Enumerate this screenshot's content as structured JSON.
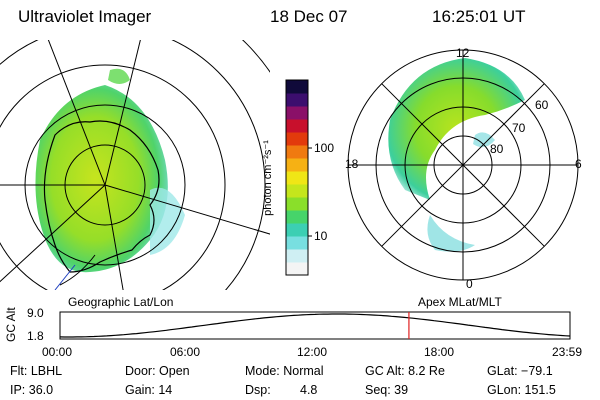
{
  "header": {
    "title": "Ultraviolet Imager",
    "date": "18 Dec 07",
    "time": "16:25:01 UT"
  },
  "left_panel": {
    "caption": "Geographic Lat/Lon"
  },
  "right_panel": {
    "caption": "Apex MLat/MLT",
    "mlt_labels": {
      "top": "12",
      "left": "18",
      "right": "6",
      "bottom": "0"
    },
    "lat_labels": [
      "60",
      "70",
      "80"
    ]
  },
  "colorbar": {
    "unit_label": "photon cm⁻²s⁻¹",
    "ticks": [
      {
        "label": "100",
        "value": 100
      },
      {
        "label": "10",
        "value": 10
      }
    ],
    "colors": [
      "#f4f4f4",
      "#cfeff3",
      "#78dfe0",
      "#3ccfb3",
      "#46d46a",
      "#8adf2a",
      "#c5e61c",
      "#f0e616",
      "#f6b114",
      "#f07a10",
      "#e23a0c",
      "#c8102c",
      "#8a1068",
      "#3c0e6e",
      "#100a3a"
    ]
  },
  "altitude_plot": {
    "ylabel": "GC Alt",
    "y_ticks": [
      "9.0",
      "1.8"
    ],
    "x_ticks": [
      "00:00",
      "06:00",
      "12:00",
      "18:00",
      "23:59"
    ],
    "current_time_hours": 16.42,
    "marker_color": "#e02020"
  },
  "status": {
    "row1": {
      "filter": "Flt: LBHL",
      "door": "Door: Open",
      "mode": "Mode: Normal",
      "gc_alt": "GC Alt: 8.2 Re",
      "glat": "GLat: −79.1"
    },
    "row2": {
      "ip": "IP: 36.0",
      "gain": "Gain: 14",
      "dsp_label": "Dsp:",
      "dsp_value": "4.8",
      "seq": "Seq: 39",
      "glon": "GLon: 151.5"
    }
  }
}
